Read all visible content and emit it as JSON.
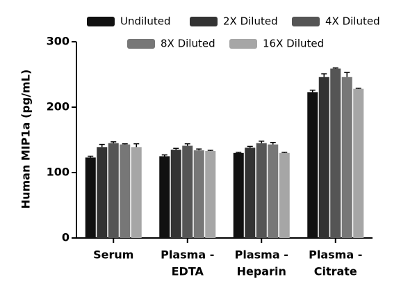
{
  "chart_data": {
    "type": "bar",
    "y_label": "Human MIP1a (pg/mL)",
    "categories": [
      [
        "Serum"
      ],
      [
        "Plasma -",
        "EDTA"
      ],
      [
        "Plasma -",
        "Heparin"
      ],
      [
        "Plasma -",
        "Citrate"
      ]
    ],
    "series": [
      {
        "name": "Undiluted",
        "color": "#111111",
        "values": [
          123,
          125,
          130,
          223
        ],
        "errors": [
          2,
          2,
          1,
          3
        ]
      },
      {
        "name": "2X Diluted",
        "color": "#333333",
        "values": [
          139,
          135,
          138,
          246
        ],
        "errors": [
          4,
          2,
          2,
          5
        ]
      },
      {
        "name": "4X Diluted",
        "color": "#555555",
        "values": [
          145,
          141,
          145,
          259
        ],
        "errors": [
          2,
          3,
          3,
          1
        ]
      },
      {
        "name": "8X Diluted",
        "color": "#777777",
        "values": [
          143,
          134,
          143,
          246
        ],
        "errors": [
          1,
          2,
          3,
          7
        ]
      },
      {
        "name": "16X Diluted",
        "color": "#a6a6a6",
        "values": [
          139,
          133,
          130,
          228
        ],
        "errors": [
          5,
          1,
          1,
          1
        ]
      }
    ],
    "ylim": [
      0,
      300
    ],
    "yticks": [
      0,
      100,
      200,
      300
    ]
  }
}
